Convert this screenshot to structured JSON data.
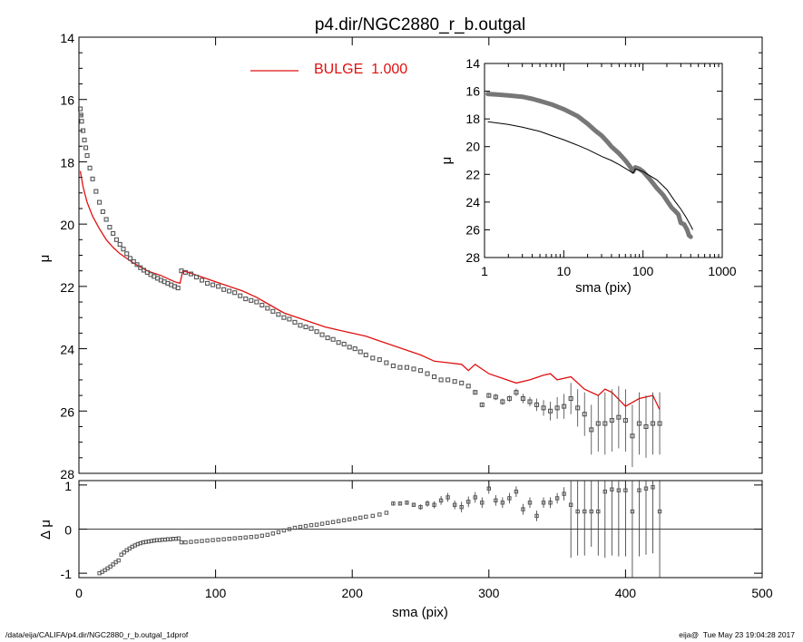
{
  "page": {
    "footer_left": "/data/eija/CALIFA/p4.dir/NGC2880_r_b.outgal_1dprof",
    "footer_right": "eija@  Tue May 23 19:04:28 2017"
  },
  "chart_data": [
    {
      "id": "main",
      "type": "scatter",
      "title": "p4.dir/NGC2880_r_b.outgal",
      "xlabel": "",
      "ylabel": "μ",
      "xlim": [
        0,
        500
      ],
      "ylim": [
        28,
        14
      ],
      "y_reversed": true,
      "x_ticks": [
        0,
        100,
        200,
        300,
        400,
        500
      ],
      "y_ticks": [
        14,
        16,
        18,
        20,
        22,
        24,
        26,
        28
      ],
      "grid": false,
      "legend": {
        "placement": "top-left",
        "entries": [
          {
            "label": "BULGE  1.000",
            "color": "#e01010"
          }
        ]
      },
      "series": [
        {
          "name": "data",
          "style": "square-markers",
          "color": "#555555",
          "x": [
            1.0,
            1.5,
            2.0,
            3.0,
            4.0,
            5.0,
            6.0,
            8.0,
            10.0,
            12.5,
            15.0,
            17.5,
            20.0,
            22.5,
            25.0,
            27.5,
            30.0,
            32.5,
            35.0,
            37.5,
            40.0,
            42.5,
            45.0,
            47.5,
            50.0,
            52.5,
            55.0,
            57.5,
            60.0,
            62.5,
            65.0,
            67.5,
            70.0,
            72.5,
            75.0,
            78.0,
            82.0,
            86.0,
            90.0,
            94.0,
            98.0,
            102.0,
            106.0,
            110.0,
            114.0,
            118.0,
            122.0,
            126.0,
            130.0,
            134.0,
            138.0,
            142.0,
            146.0,
            150.0,
            154.0,
            158.0,
            162.0,
            166.0,
            170.0,
            174.0,
            178.0,
            182.0,
            186.0,
            190.0,
            194.0,
            198.0,
            202.0,
            206.0,
            210.0,
            215.0,
            220.0,
            225.0,
            230.0,
            235.0,
            240.0,
            245.0,
            250.0,
            255.0,
            260.0,
            265.0,
            270.0,
            275.0,
            280.0,
            285.0,
            290.0,
            295.0,
            300.0,
            305.0,
            310.0,
            315.0,
            320.0,
            325.0,
            330.0,
            335.0,
            340.0,
            345.0,
            350.0,
            355.0,
            360.0,
            365.0,
            370.0,
            375.0,
            380.0,
            385.0,
            390.0,
            395.0,
            400.0,
            405.0,
            410.0,
            415.0,
            420.0,
            425.0
          ],
          "y": [
            16.3,
            16.5,
            16.7,
            17.0,
            17.3,
            17.55,
            17.8,
            18.2,
            18.55,
            18.95,
            19.3,
            19.6,
            19.85,
            20.1,
            20.3,
            20.5,
            20.65,
            20.8,
            20.95,
            21.1,
            21.2,
            21.3,
            21.4,
            21.48,
            21.55,
            21.62,
            21.68,
            21.74,
            21.8,
            21.85,
            21.9,
            21.95,
            22.0,
            22.05,
            21.5,
            21.55,
            21.6,
            21.7,
            21.8,
            21.9,
            21.95,
            22.0,
            22.1,
            22.15,
            22.2,
            22.3,
            22.4,
            22.45,
            22.5,
            22.6,
            22.7,
            22.8,
            22.9,
            23.0,
            23.05,
            23.15,
            23.25,
            23.3,
            23.35,
            23.45,
            23.55,
            23.65,
            23.7,
            23.8,
            23.85,
            23.95,
            24.0,
            24.1,
            24.2,
            24.3,
            24.35,
            24.45,
            24.55,
            24.6,
            24.6,
            24.65,
            24.7,
            24.8,
            24.9,
            25.0,
            25.0,
            25.05,
            25.1,
            25.2,
            25.4,
            25.8,
            25.5,
            25.55,
            25.7,
            25.6,
            25.4,
            25.6,
            25.7,
            25.8,
            25.9,
            26.0,
            25.9,
            25.85,
            25.6,
            25.9,
            26.1,
            26.6,
            26.4,
            26.4,
            26.3,
            26.2,
            26.3,
            26.8,
            26.4,
            26.5,
            26.4,
            26.4
          ],
          "y_err": [
            0.02,
            0.02,
            0.02,
            0.02,
            0.02,
            0.02,
            0.02,
            0.02,
            0.02,
            0.02,
            0.02,
            0.02,
            0.02,
            0.02,
            0.02,
            0.02,
            0.02,
            0.02,
            0.02,
            0.02,
            0.02,
            0.02,
            0.02,
            0.02,
            0.02,
            0.02,
            0.02,
            0.02,
            0.02,
            0.02,
            0.02,
            0.02,
            0.02,
            0.02,
            0.02,
            0.02,
            0.02,
            0.02,
            0.02,
            0.02,
            0.02,
            0.02,
            0.02,
            0.02,
            0.02,
            0.02,
            0.02,
            0.02,
            0.02,
            0.02,
            0.02,
            0.02,
            0.02,
            0.02,
            0.02,
            0.02,
            0.02,
            0.02,
            0.02,
            0.02,
            0.02,
            0.02,
            0.02,
            0.02,
            0.02,
            0.02,
            0.02,
            0.02,
            0.02,
            0.02,
            0.02,
            0.02,
            0.02,
            0.02,
            0.02,
            0.02,
            0.02,
            0.02,
            0.03,
            0.03,
            0.03,
            0.04,
            0.05,
            0.05,
            0.06,
            0.07,
            0.08,
            0.1,
            0.1,
            0.1,
            0.12,
            0.15,
            0.15,
            0.2,
            0.25,
            0.3,
            0.35,
            0.4,
            0.5,
            0.6,
            0.7,
            0.8,
            0.9,
            1.0,
            1.0,
            1.0,
            1.0,
            1.0,
            1.0,
            1.0,
            1.0,
            1.0
          ]
        },
        {
          "name": "BULGE  1.000",
          "style": "line",
          "color": "#e01010",
          "x": [
            1,
            3,
            6,
            10,
            15,
            20,
            25,
            30,
            40,
            50,
            60,
            70,
            74,
            76,
            80,
            90,
            100,
            110,
            120,
            130,
            140,
            150,
            160,
            170,
            180,
            190,
            200,
            210,
            220,
            230,
            240,
            250,
            260,
            270,
            280,
            285,
            290,
            300,
            310,
            320,
            330,
            340,
            345,
            350,
            360,
            370,
            380,
            385,
            390,
            400,
            410,
            420,
            425
          ],
          "y": [
            18.3,
            18.8,
            19.3,
            19.75,
            20.15,
            20.5,
            20.75,
            20.95,
            21.25,
            21.5,
            21.65,
            21.85,
            21.9,
            21.5,
            21.55,
            21.7,
            21.85,
            22.0,
            22.15,
            22.35,
            22.6,
            22.85,
            23.0,
            23.15,
            23.3,
            23.4,
            23.5,
            23.6,
            23.75,
            23.9,
            24.05,
            24.2,
            24.4,
            24.45,
            24.5,
            24.7,
            24.5,
            24.8,
            24.95,
            25.1,
            25.0,
            24.85,
            24.8,
            25.0,
            24.9,
            25.3,
            25.5,
            25.3,
            25.4,
            25.85,
            25.6,
            25.5,
            25.95
          ]
        }
      ]
    },
    {
      "id": "residual",
      "type": "scatter",
      "xlabel": "sma (pix)",
      "ylabel": "Δ μ",
      "xlim": [
        0,
        500
      ],
      "ylim": [
        -1.1,
        1.1
      ],
      "x_ticks": [
        0,
        100,
        200,
        300,
        400,
        500
      ],
      "y_ticks": [
        -1,
        0,
        1
      ],
      "zero_line": 0,
      "grid": false,
      "series": [
        {
          "name": "data",
          "style": "square-markers",
          "color": "#555555",
          "x": [
            15,
            17,
            19,
            21,
            23,
            25,
            27,
            29,
            31,
            33,
            35,
            37,
            39,
            41,
            43,
            45,
            47,
            49,
            51,
            53,
            55,
            57,
            59,
            61,
            63,
            65,
            67,
            69,
            71,
            73,
            75,
            78,
            82,
            86,
            90,
            94,
            98,
            102,
            106,
            110,
            114,
            118,
            122,
            126,
            130,
            134,
            138,
            142,
            146,
            150,
            154,
            158,
            162,
            166,
            170,
            174,
            178,
            182,
            186,
            190,
            194,
            198,
            202,
            206,
            210,
            215,
            220,
            225,
            230,
            235,
            240,
            245,
            250,
            255,
            260,
            265,
            270,
            275,
            280,
            285,
            290,
            295,
            300,
            305,
            310,
            315,
            320,
            325,
            330,
            335,
            340,
            345,
            350,
            355,
            360,
            365,
            370,
            375,
            380,
            385,
            390,
            395,
            400,
            405,
            410,
            415,
            420,
            425
          ],
          "y": [
            -1.0,
            -0.97,
            -0.93,
            -0.89,
            -0.85,
            -0.8,
            -0.75,
            -0.71,
            -0.58,
            -0.53,
            -0.48,
            -0.44,
            -0.4,
            -0.37,
            -0.34,
            -0.32,
            -0.3,
            -0.29,
            -0.28,
            -0.27,
            -0.26,
            -0.25,
            -0.25,
            -0.24,
            -0.24,
            -0.23,
            -0.23,
            -0.22,
            -0.22,
            -0.21,
            -0.3,
            -0.3,
            -0.29,
            -0.28,
            -0.27,
            -0.26,
            -0.25,
            -0.24,
            -0.23,
            -0.22,
            -0.21,
            -0.2,
            -0.19,
            -0.18,
            -0.17,
            -0.15,
            -0.13,
            -0.1,
            -0.07,
            -0.03,
            0.0,
            0.03,
            0.05,
            0.07,
            0.09,
            0.1,
            0.12,
            0.14,
            0.16,
            0.18,
            0.2,
            0.22,
            0.24,
            0.26,
            0.28,
            0.3,
            0.33,
            0.37,
            0.58,
            0.58,
            0.6,
            0.55,
            0.5,
            0.58,
            0.55,
            0.65,
            0.72,
            0.55,
            0.5,
            0.62,
            0.72,
            0.6,
            0.92,
            0.65,
            0.6,
            0.7,
            0.85,
            0.45,
            0.6,
            0.3,
            0.6,
            0.6,
            0.7,
            0.8,
            0.55,
            0.4,
            0.4,
            0.4,
            0.4,
            0.85,
            0.9,
            0.88,
            0.88,
            0.4,
            0.88,
            0.92,
            0.95,
            0.4
          ],
          "y_err": [
            0.02,
            0.02,
            0.02,
            0.02,
            0.02,
            0.02,
            0.02,
            0.02,
            0.02,
            0.02,
            0.02,
            0.02,
            0.02,
            0.02,
            0.02,
            0.02,
            0.02,
            0.02,
            0.02,
            0.02,
            0.02,
            0.02,
            0.02,
            0.02,
            0.02,
            0.02,
            0.02,
            0.02,
            0.02,
            0.02,
            0.02,
            0.02,
            0.02,
            0.02,
            0.02,
            0.02,
            0.02,
            0.02,
            0.02,
            0.02,
            0.02,
            0.02,
            0.02,
            0.02,
            0.02,
            0.02,
            0.02,
            0.02,
            0.02,
            0.02,
            0.02,
            0.02,
            0.02,
            0.02,
            0.02,
            0.02,
            0.02,
            0.02,
            0.02,
            0.02,
            0.02,
            0.02,
            0.02,
            0.02,
            0.02,
            0.02,
            0.02,
            0.02,
            0.04,
            0.04,
            0.05,
            0.05,
            0.06,
            0.07,
            0.08,
            0.1,
            0.1,
            0.1,
            0.12,
            0.12,
            0.12,
            0.12,
            0.12,
            0.12,
            0.12,
            0.12,
            0.12,
            0.12,
            0.12,
            0.12,
            0.12,
            0.12,
            0.12,
            0.15,
            1.2,
            1.0,
            1.0,
            0.8,
            1.0,
            1.5,
            1.5,
            1.5,
            1.5,
            1.5,
            1.5,
            1.5,
            1.5,
            1.5
          ]
        }
      ]
    },
    {
      "id": "inset",
      "type": "line",
      "xlabel": "sma (pix)",
      "ylabel": "μ",
      "x_scale": "log",
      "xlim": [
        1,
        1000
      ],
      "ylim": [
        28,
        14
      ],
      "y_reversed": true,
      "x_ticks": [
        1,
        10,
        100,
        1000
      ],
      "x_tick_labels": [
        "1",
        "10",
        "100",
        "1000"
      ],
      "y_ticks": [
        14,
        16,
        18,
        20,
        22,
        24,
        26,
        28
      ],
      "grid": false,
      "series": [
        {
          "name": "data",
          "style": "thick-line",
          "color": "#777777",
          "x": [
            1.1,
            1.5,
            2,
            3,
            4,
            5,
            7,
            10,
            15,
            20,
            25,
            30,
            35,
            40,
            50,
            60,
            70,
            75,
            80,
            90,
            100,
            120,
            150,
            180,
            200,
            230,
            250,
            280,
            300,
            330,
            360,
            380,
            400
          ],
          "y": [
            16.2,
            16.25,
            16.3,
            16.4,
            16.55,
            16.7,
            16.95,
            17.3,
            17.8,
            18.35,
            18.85,
            19.2,
            19.6,
            20.0,
            20.5,
            21.0,
            21.5,
            21.8,
            21.5,
            21.6,
            21.8,
            22.3,
            23.0,
            23.5,
            23.9,
            24.4,
            24.6,
            24.9,
            25.5,
            25.6,
            26.0,
            26.4,
            26.5
          ]
        },
        {
          "name": "model",
          "style": "line",
          "color": "#000000",
          "x": [
            1.1,
            2,
            3,
            5,
            7,
            10,
            15,
            20,
            30,
            40,
            50,
            70,
            75,
            80,
            100,
            150,
            200,
            250,
            300,
            350,
            400,
            425
          ],
          "y": [
            18.2,
            18.4,
            18.6,
            18.9,
            19.2,
            19.5,
            19.9,
            20.2,
            20.7,
            21.0,
            21.3,
            21.8,
            21.9,
            21.6,
            21.8,
            22.4,
            23.1,
            23.9,
            24.5,
            25.1,
            25.7,
            26.0
          ]
        }
      ]
    }
  ]
}
